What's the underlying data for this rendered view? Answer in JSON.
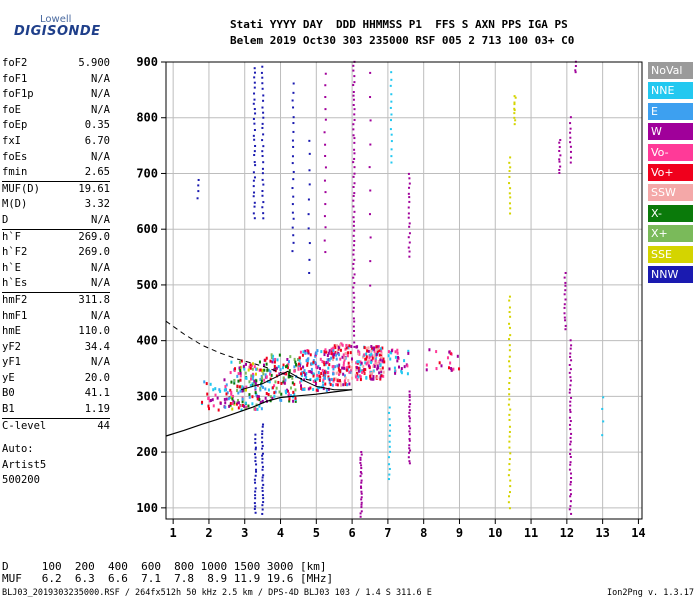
{
  "logo": {
    "line1": "Lowell",
    "line2": "DIGISONDE"
  },
  "header": {
    "labels": "Stati YYYY DAY  DDD HHMMSS P1  FFS S AXN PPS IGA PS",
    "values": "Belem 2019 Oct30 303 235000 RSF 005 2 713 100 03+ C0"
  },
  "params": [
    {
      "name": "foF2",
      "value": "5.900"
    },
    {
      "name": "foF1",
      "value": "N/A"
    },
    {
      "name": "foF1p",
      "value": "N/A"
    },
    {
      "name": "foE",
      "value": "N/A"
    },
    {
      "name": "foEp",
      "value": "0.35"
    },
    {
      "name": "fxI",
      "value": "6.70"
    },
    {
      "name": "foEs",
      "value": "N/A"
    },
    {
      "name": "fmin",
      "value": "2.65"
    },
    {
      "name": "MUF(D)",
      "value": "19.61"
    },
    {
      "name": "M(D)",
      "value": "3.32"
    },
    {
      "name": "D",
      "value": "N/A"
    },
    {
      "name": "h`F",
      "value": "269.0"
    },
    {
      "name": "h`F2",
      "value": "269.0"
    },
    {
      "name": "h`E",
      "value": "N/A"
    },
    {
      "name": "h`Es",
      "value": "N/A"
    },
    {
      "name": "hmF2",
      "value": "311.8"
    },
    {
      "name": "hmF1",
      "value": "N/A"
    },
    {
      "name": "hmE",
      "value": "110.0"
    },
    {
      "name": "yF2",
      "value": "34.4"
    },
    {
      "name": "yF1",
      "value": "N/A"
    },
    {
      "name": "yE",
      "value": "20.0"
    },
    {
      "name": "B0",
      "value": "41.1"
    },
    {
      "name": "B1",
      "value": "1.19"
    },
    {
      "name": "C-level",
      "value": "44"
    }
  ],
  "auto": {
    "line1": "Auto:",
    "line2": "Artist5",
    "line3": "500200"
  },
  "legend": [
    {
      "label": "NoVal",
      "color": "#9a9a9a"
    },
    {
      "label": "NNE",
      "color": "#22c8f0"
    },
    {
      "label": "E",
      "color": "#3da0f0"
    },
    {
      "label": "W",
      "color": "#a0009a"
    },
    {
      "label": "Vo-",
      "color": "#ff3a98"
    },
    {
      "label": "Vo+",
      "color": "#f0001c"
    },
    {
      "label": "SSW",
      "color": "#f4a8a8"
    },
    {
      "label": "X-",
      "color": "#0a7a0a"
    },
    {
      "label": "X+",
      "color": "#7aba5a"
    },
    {
      "label": "SSE",
      "color": "#d4d400"
    },
    {
      "label": "NNW",
      "color": "#1a1ab0"
    }
  ],
  "muf_table": {
    "row1": "D     100  200  400  600  800 1000 1500 3000 [km]",
    "row2": "MUF   6.2  6.3  6.6  7.1  7.8  8.9 11.9 19.6 [MHz]"
  },
  "footer": {
    "left": "BLJ03_2019303235000.RSF / 264fx512h 50 kHz 2.5 km / DPS-4D BLJ03 103 / 1.4 S 311.6 E",
    "right": "Ion2Png v. 1.3.17"
  },
  "chart_data": {
    "type": "scatter",
    "title": "",
    "xlabel": "",
    "ylabel": "",
    "xlim": [
      0.8,
      14.1
    ],
    "ylim": [
      80,
      900
    ],
    "xticks": [
      1,
      2,
      3,
      4,
      5,
      6,
      7,
      8,
      9,
      10,
      11,
      12,
      13,
      14
    ],
    "yticks": [
      100,
      200,
      300,
      400,
      500,
      600,
      700,
      800,
      900
    ],
    "grid": true,
    "legend_placement": "right",
    "profile_line": {
      "style": "solid",
      "x": [
        0.8,
        1.3,
        1.8,
        2.2,
        2.7,
        3.2,
        3.6,
        4.0,
        4.5,
        5.0,
        5.5,
        6.0
      ],
      "y": [
        229,
        239,
        250,
        258,
        269,
        280,
        291,
        298,
        301,
        304,
        308,
        312
      ]
    },
    "extrapolation_line": {
      "style": "dashed",
      "x": [
        0.8,
        1.3,
        1.8,
        2.3,
        2.8,
        3.3,
        3.6,
        3.9,
        4.2,
        4.6,
        5.0
      ],
      "y": [
        435,
        412,
        392,
        378,
        367,
        358,
        352,
        345,
        338,
        332,
        327
      ]
    },
    "trace_line": {
      "style": "solid",
      "x": [
        2.9,
        3.5,
        4.2,
        4.6,
        5.0,
        5.5,
        6.0
      ],
      "y": [
        312,
        323,
        345,
        330,
        318,
        312,
        312
      ]
    },
    "echo_clusters": [
      {
        "x0": 1.8,
        "x1": 2.6,
        "y0": 270,
        "y1": 330,
        "n": 40,
        "colors": [
          "#3da0f0",
          "#22c8f0",
          "#a0009a",
          "#f0001c",
          "#ff3a98"
        ]
      },
      {
        "x0": 2.6,
        "x1": 3.5,
        "y0": 275,
        "y1": 365,
        "n": 140,
        "colors": [
          "#a0009a",
          "#f0001c",
          "#ff3a98",
          "#3da0f0",
          "#22c8f0",
          "#7aba5a",
          "#d4d400",
          "#0a7a0a"
        ]
      },
      {
        "x0": 3.5,
        "x1": 4.5,
        "y0": 290,
        "y1": 375,
        "n": 120,
        "colors": [
          "#a0009a",
          "#f0001c",
          "#ff3a98",
          "#3da0f0",
          "#22c8f0",
          "#7aba5a",
          "#0a7a0a"
        ]
      },
      {
        "x0": 4.5,
        "x1": 5.4,
        "y0": 310,
        "y1": 385,
        "n": 140,
        "colors": [
          "#f0001c",
          "#ff3a98",
          "#a0009a",
          "#3da0f0",
          "#22c8f0"
        ]
      },
      {
        "x0": 5.4,
        "x1": 6.0,
        "y0": 320,
        "y1": 395,
        "n": 120,
        "colors": [
          "#f0001c",
          "#ff3a98",
          "#a0009a",
          "#f4a8a8",
          "#3da0f0"
        ]
      },
      {
        "x0": 6.1,
        "x1": 6.9,
        "y0": 330,
        "y1": 390,
        "n": 160,
        "colors": [
          "#f0001c",
          "#ff3a98",
          "#f4a8a8",
          "#a0009a",
          "#22c8f0"
        ]
      },
      {
        "x0": 7.0,
        "x1": 7.6,
        "y0": 340,
        "y1": 385,
        "n": 30,
        "colors": [
          "#ff3a98",
          "#a0009a",
          "#22c8f0"
        ]
      },
      {
        "x0": 8.0,
        "x1": 9.0,
        "y0": 345,
        "y1": 385,
        "n": 20,
        "colors": [
          "#f0001c",
          "#a0009a",
          "#ff3a98"
        ]
      }
    ],
    "vertical_streaks": [
      {
        "x": 1.7,
        "y0": 655,
        "y1": 690,
        "n": 4,
        "color": "#1a1ab0"
      },
      {
        "x": 3.27,
        "y0": 620,
        "y1": 890,
        "n": 30,
        "color": "#1a1ab0"
      },
      {
        "x": 3.5,
        "y0": 620,
        "y1": 890,
        "n": 28,
        "color": "#1a1ab0"
      },
      {
        "x": 3.5,
        "y0": 90,
        "y1": 250,
        "n": 26,
        "color": "#1a1ab0"
      },
      {
        "x": 3.3,
        "y0": 90,
        "y1": 230,
        "n": 22,
        "color": "#1a1ab0"
      },
      {
        "x": 4.35,
        "y0": 560,
        "y1": 860,
        "n": 22,
        "color": "#1a1ab0"
      },
      {
        "x": 4.8,
        "y0": 520,
        "y1": 760,
        "n": 10,
        "color": "#1a1ab0"
      },
      {
        "x": 5.25,
        "y0": 560,
        "y1": 880,
        "n": 16,
        "color": "#a0009a"
      },
      {
        "x": 6.05,
        "y0": 390,
        "y1": 900,
        "n": 60,
        "color": "#a0009a"
      },
      {
        "x": 6.25,
        "y0": 85,
        "y1": 200,
        "n": 24,
        "color": "#a0009a"
      },
      {
        "x": 6.5,
        "y0": 500,
        "y1": 880,
        "n": 10,
        "color": "#a0009a"
      },
      {
        "x": 7.1,
        "y0": 720,
        "y1": 880,
        "n": 14,
        "color": "#22c8f0"
      },
      {
        "x": 7.05,
        "y0": 150,
        "y1": 280,
        "n": 14,
        "color": "#22c8f0"
      },
      {
        "x": 7.6,
        "y0": 180,
        "y1": 310,
        "n": 24,
        "color": "#a0009a"
      },
      {
        "x": 7.6,
        "y0": 550,
        "y1": 700,
        "n": 18,
        "color": "#a0009a"
      },
      {
        "x": 10.4,
        "y0": 100,
        "y1": 480,
        "n": 40,
        "color": "#d4d400"
      },
      {
        "x": 10.4,
        "y0": 630,
        "y1": 730,
        "n": 12,
        "color": "#d4d400"
      },
      {
        "x": 10.55,
        "y0": 790,
        "y1": 840,
        "n": 10,
        "color": "#d4d400"
      },
      {
        "x": 11.8,
        "y0": 700,
        "y1": 760,
        "n": 10,
        "color": "#a0009a"
      },
      {
        "x": 11.95,
        "y0": 420,
        "y1": 520,
        "n": 14,
        "color": "#a0009a"
      },
      {
        "x": 12.1,
        "y0": 90,
        "y1": 400,
        "n": 44,
        "color": "#a0009a"
      },
      {
        "x": 12.1,
        "y0": 720,
        "y1": 800,
        "n": 10,
        "color": "#a0009a"
      },
      {
        "x": 12.25,
        "y0": 880,
        "y1": 900,
        "n": 4,
        "color": "#a0009a"
      },
      {
        "x": 13.0,
        "y0": 230,
        "y1": 300,
        "n": 4,
        "color": "#22c8f0"
      }
    ]
  }
}
